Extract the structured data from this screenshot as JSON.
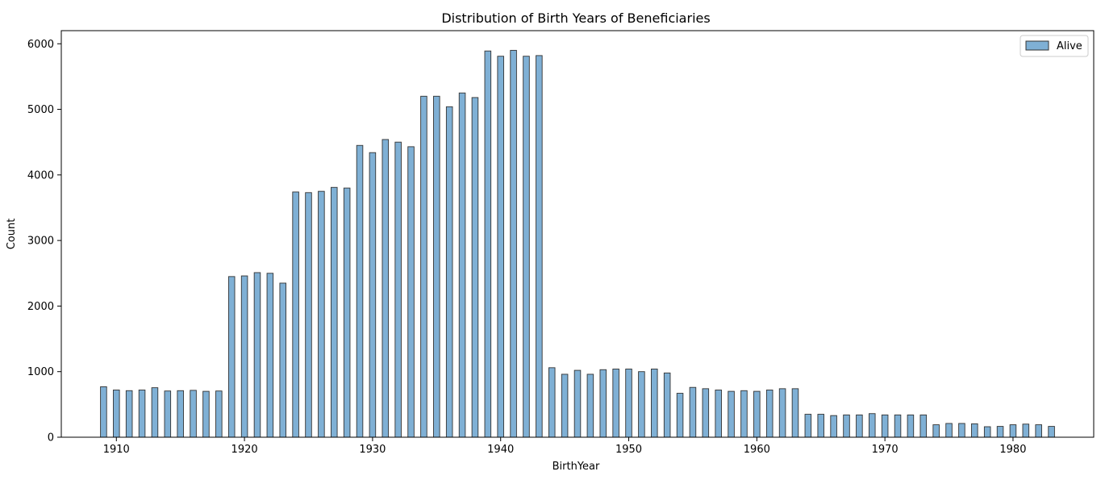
{
  "chart_data": {
    "type": "bar",
    "title": "Distribution of Birth Years of Beneficiaries",
    "xlabel": "BirthYear",
    "ylabel": "Count",
    "xlim": [
      1905.7,
      1986.3
    ],
    "ylim": [
      0,
      6200
    ],
    "xticks": [
      1910,
      1920,
      1930,
      1940,
      1950,
      1960,
      1970,
      1980
    ],
    "yticks": [
      0,
      1000,
      2000,
      3000,
      4000,
      5000,
      6000
    ],
    "grid": false,
    "legend_position": "top-right",
    "series": [
      {
        "name": "Alive",
        "color": "#7fb0d5",
        "edge_color": "#333333",
        "x": [
          1909,
          1910,
          1911,
          1912,
          1913,
          1914,
          1915,
          1916,
          1917,
          1918,
          1919,
          1920,
          1921,
          1922,
          1923,
          1924,
          1925,
          1926,
          1927,
          1928,
          1929,
          1930,
          1931,
          1932,
          1933,
          1934,
          1935,
          1936,
          1937,
          1938,
          1939,
          1940,
          1941,
          1942,
          1943,
          1944,
          1945,
          1946,
          1947,
          1948,
          1949,
          1950,
          1951,
          1952,
          1953,
          1954,
          1955,
          1956,
          1957,
          1958,
          1959,
          1960,
          1961,
          1962,
          1963,
          1964,
          1965,
          1966,
          1967,
          1968,
          1969,
          1970,
          1971,
          1972,
          1973,
          1974,
          1975,
          1976,
          1977,
          1978,
          1979,
          1980,
          1981,
          1982,
          1983
        ],
        "values": [
          770,
          720,
          710,
          720,
          755,
          705,
          710,
          715,
          700,
          705,
          2450,
          2460,
          2510,
          2500,
          2350,
          3740,
          3730,
          3750,
          3810,
          3800,
          4450,
          4340,
          4540,
          4500,
          4430,
          5200,
          5200,
          5040,
          5250,
          5180,
          5890,
          5810,
          5900,
          5810,
          5820,
          1060,
          960,
          1020,
          960,
          1030,
          1040,
          1040,
          1000,
          1040,
          980,
          670,
          760,
          740,
          720,
          700,
          710,
          700,
          720,
          740,
          740,
          350,
          350,
          330,
          340,
          340,
          360,
          340,
          340,
          340,
          340,
          190,
          210,
          210,
          205,
          160,
          165,
          190,
          200,
          190,
          165
        ]
      }
    ]
  }
}
